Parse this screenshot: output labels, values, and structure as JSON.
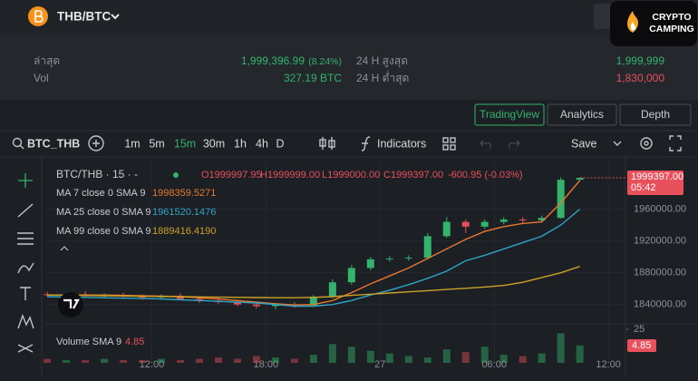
{
  "header": {
    "pair": "THB/BTC",
    "logo": [
      "CRYPTO",
      "CAMPING"
    ]
  },
  "stats": [
    {
      "label": "ล่าสุด",
      "value": "1,999,396.99",
      "change": "(8.24%)"
    },
    {
      "label": "Vol",
      "value": "327.19 BTC"
    },
    {
      "label": "24 H สูงสุด",
      "value": "1,999,999"
    },
    {
      "label": "24 H ต่ำสุด",
      "value": "1,830,000"
    }
  ],
  "tabs": [
    "TradingView",
    "Analytics",
    "Depth"
  ],
  "toolbar": {
    "symbol": "BTC_THB",
    "intervals": [
      "1m",
      "5m",
      "15m",
      "30m",
      "1h",
      "4h",
      "D"
    ],
    "indicators": "Indicators",
    "save": "Save"
  },
  "chart_data": {
    "type": "candlestick",
    "title": "BTC/THB · 15 · -",
    "ohlc": [
      "O1999997.95",
      "H1999999.00",
      "L1999000.00",
      "C1999397.00",
      "-600.95 (-0.03%)"
    ],
    "x": [
      6.5,
      7.5,
      8.5,
      9.5,
      10.5,
      11.5,
      12.5,
      13.5,
      14.5,
      15.5,
      16.5,
      17.5,
      18.5,
      19.5,
      20.5,
      21.5,
      22.5,
      23.5,
      24.5,
      25.5,
      26.5,
      27.5,
      28.5,
      29.5,
      30.5,
      31.5,
      32.5,
      33.5,
      34.5
    ],
    "open": [
      1853000,
      1852000,
      1853000,
      1851000,
      1852000,
      1850000,
      1849000,
      1851000,
      1847000,
      1845000,
      1843000,
      1840000,
      1838000,
      1840000,
      1839000,
      1850000,
      1868000,
      1886000,
      1897000,
      1898000,
      1899000,
      1926000,
      1944000,
      1938000,
      1944000,
      1947000,
      1946000,
      1949000,
      1997000
    ],
    "high": [
      1856000,
      1855000,
      1857000,
      1854000,
      1855000,
      1853000,
      1853000,
      1854000,
      1850000,
      1849000,
      1846000,
      1843000,
      1842000,
      1843000,
      1852000,
      1872000,
      1890000,
      1900000,
      1901000,
      1902000,
      1930000,
      1950000,
      1947000,
      1947000,
      1950000,
      1950000,
      1952000,
      2000000,
      2000000
    ],
    "low": [
      1850000,
      1849000,
      1850000,
      1848000,
      1849000,
      1846000,
      1846000,
      1846000,
      1842000,
      1841000,
      1838000,
      1835000,
      1834000,
      1836000,
      1837000,
      1848000,
      1865000,
      1883000,
      1894000,
      1895000,
      1897000,
      1924000,
      1930000,
      1935000,
      1941000,
      1943000,
      1944000,
      1948000,
      1996000
    ],
    "close": [
      1852000,
      1853000,
      1851000,
      1852000,
      1850000,
      1849000,
      1851000,
      1847000,
      1845000,
      1843000,
      1840000,
      1838000,
      1840000,
      1839000,
      1850000,
      1868000,
      1886000,
      1897000,
      1898000,
      1899000,
      1926000,
      1944000,
      1938000,
      1944000,
      1947000,
      1946000,
      1949000,
      1997000,
      1999397
    ],
    "series": [
      {
        "name": "MA 7 close 0 SMA 9",
        "color": "#e8772e",
        "last_label": "1998359.5271",
        "values": [
          1852000,
          1852000,
          1852000,
          1852000,
          1851500,
          1851000,
          1850500,
          1850000,
          1848500,
          1847000,
          1845000,
          1843000,
          1841000,
          1839500,
          1840000,
          1845000,
          1855000,
          1866000,
          1876000,
          1886000,
          1898000,
          1910000,
          1922000,
          1932000,
          1938000,
          1942000,
          1944000,
          1968000,
          1996000
        ]
      },
      {
        "name": "MA 25 close 0 SMA 9",
        "color": "#2fa4c7",
        "last_label": "1961520.1476",
        "values": [
          1850000,
          1849500,
          1849000,
          1848500,
          1848000,
          1847500,
          1847000,
          1846000,
          1845000,
          1844000,
          1843000,
          1842000,
          1840000,
          1838000,
          1838000,
          1840000,
          1845000,
          1852000,
          1858000,
          1865000,
          1873000,
          1882000,
          1895000,
          1902000,
          1910000,
          1918000,
          1926000,
          1940000,
          1960000
        ]
      },
      {
        "name": "MA 99 close 0 SMA 9",
        "color": "#c9a227",
        "last_label": "1889416.4190",
        "values": [
          1852000,
          1851700,
          1851400,
          1851100,
          1850800,
          1850500,
          1850200,
          1849900,
          1849600,
          1849300,
          1849000,
          1848800,
          1848600,
          1848600,
          1849000,
          1850000,
          1851500,
          1853000,
          1854500,
          1856000,
          1857500,
          1859000,
          1860500,
          1862000,
          1864000,
          1868000,
          1874000,
          1880000,
          1888000
        ]
      }
    ],
    "up_color": "#33b36b",
    "down_color": "#e8505b",
    "xlim": [
      6.4,
      36.9
    ],
    "xticks": [
      {
        "value": 12,
        "label": "12:00"
      },
      {
        "value": 18,
        "label": "18:00"
      },
      {
        "value": 24,
        "label": "27"
      },
      {
        "value": 30,
        "label": "06:00"
      },
      {
        "value": 36,
        "label": "12:00"
      }
    ],
    "ylim": [
      1818000,
      2012000
    ],
    "yticks": [
      {
        "value": 1960000,
        "label": "1960000.00"
      },
      {
        "value": 1920000,
        "label": "1920000.00"
      },
      {
        "value": 1880000,
        "label": "1880000.00"
      },
      {
        "value": 1840000,
        "label": "1840000.00"
      }
    ],
    "grid": true,
    "price_label": "1999397.00",
    "time_label": "05:42",
    "volume": {
      "name": "Volume SMA 9",
      "value_label": "4.85",
      "values": [
        3,
        2,
        2,
        3,
        2,
        2,
        3,
        2,
        3,
        4,
        3,
        5,
        4,
        3,
        6,
        14,
        12,
        9,
        7,
        5,
        4,
        10,
        8,
        12,
        6,
        5,
        7,
        22,
        13
      ],
      "ylim": [
        0,
        27
      ],
      "yticks": [
        25
      ]
    }
  }
}
